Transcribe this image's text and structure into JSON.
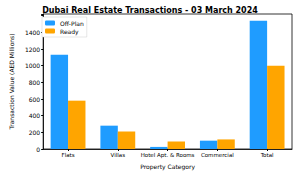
{
  "chart_data": {
    "type": "bar",
    "title": "Dubai Real Estate Transactions - 03 March 2024",
    "x_label": "Property Category",
    "y_label": "Transaction Value (AED Millions)",
    "categories": [
      "Flats",
      "Villas",
      "Hotel Apt. & Rooms",
      "Commercial",
      "Total"
    ],
    "series": [
      {
        "name": "Off-Plan",
        "color": "#1f9cff",
        "values": [
          1130,
          280,
          25,
          100,
          1540
        ]
      },
      {
        "name": "Ready",
        "color": "#ffa500",
        "values": [
          580,
          210,
          90,
          115,
          1000
        ]
      }
    ],
    "ylim": [
      0,
      1620
    ],
    "yticks": [
      0,
      200,
      400,
      600,
      800,
      1000,
      1200,
      1400
    ],
    "legend": "upper left",
    "grid": false
  }
}
